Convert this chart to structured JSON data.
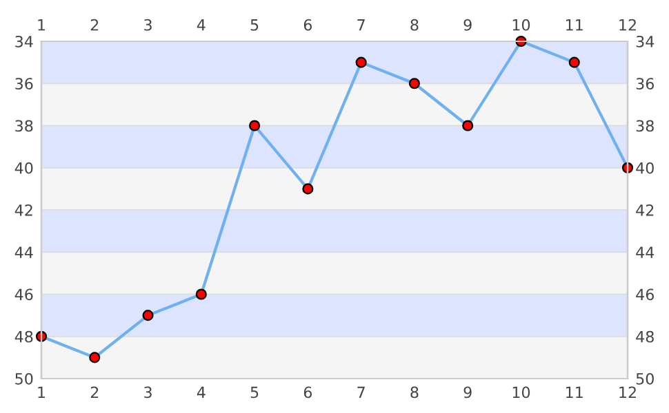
{
  "chart_data": {
    "type": "line",
    "x": [
      1,
      2,
      3,
      4,
      5,
      6,
      7,
      8,
      9,
      10,
      11,
      12
    ],
    "series": [
      {
        "color": "#6eb0f0",
        "values": [
          48,
          49,
          47,
          46,
          38,
          41,
          35,
          36,
          38,
          34,
          35,
          40
        ]
      }
    ],
    "xlim": [
      1,
      12
    ],
    "xticks": [
      1,
      2,
      3,
      4,
      5,
      6,
      7,
      8,
      9,
      10,
      11,
      12
    ],
    "x2lim": [
      1,
      12
    ],
    "x2ticks": [
      1,
      2,
      3,
      4,
      5,
      6,
      7,
      8,
      9,
      10,
      11,
      12
    ],
    "ylim": [
      50,
      34
    ],
    "yticks": [
      34,
      36,
      38,
      40,
      42,
      44,
      46,
      48,
      50
    ],
    "y2lim": [
      50,
      34
    ],
    "y2ticks": [
      34,
      36,
      38,
      40,
      42,
      44,
      46,
      48,
      50
    ],
    "bands": [
      {
        "axis": "y",
        "from": 34,
        "to": 36,
        "color": "#dde4ff"
      },
      {
        "axis": "y",
        "from": 36,
        "to": 38,
        "color": "#f5f5f5"
      },
      {
        "axis": "y",
        "from": 38,
        "to": 40,
        "color": "#dde4ff"
      },
      {
        "axis": "y",
        "from": 40,
        "to": 42,
        "color": "#f5f5f5"
      },
      {
        "axis": "y",
        "from": 42,
        "to": 44,
        "color": "#dde4ff"
      },
      {
        "axis": "y",
        "from": 44,
        "to": 46,
        "color": "#f5f5f5"
      },
      {
        "axis": "y",
        "from": 46,
        "to": 48,
        "color": "#dde4ff"
      },
      {
        "axis": "y",
        "from": 48,
        "to": 50,
        "color": "#f5f5f5"
      }
    ],
    "grid": "y",
    "marker": "circle",
    "line_style": "solid",
    "legend": false
  }
}
